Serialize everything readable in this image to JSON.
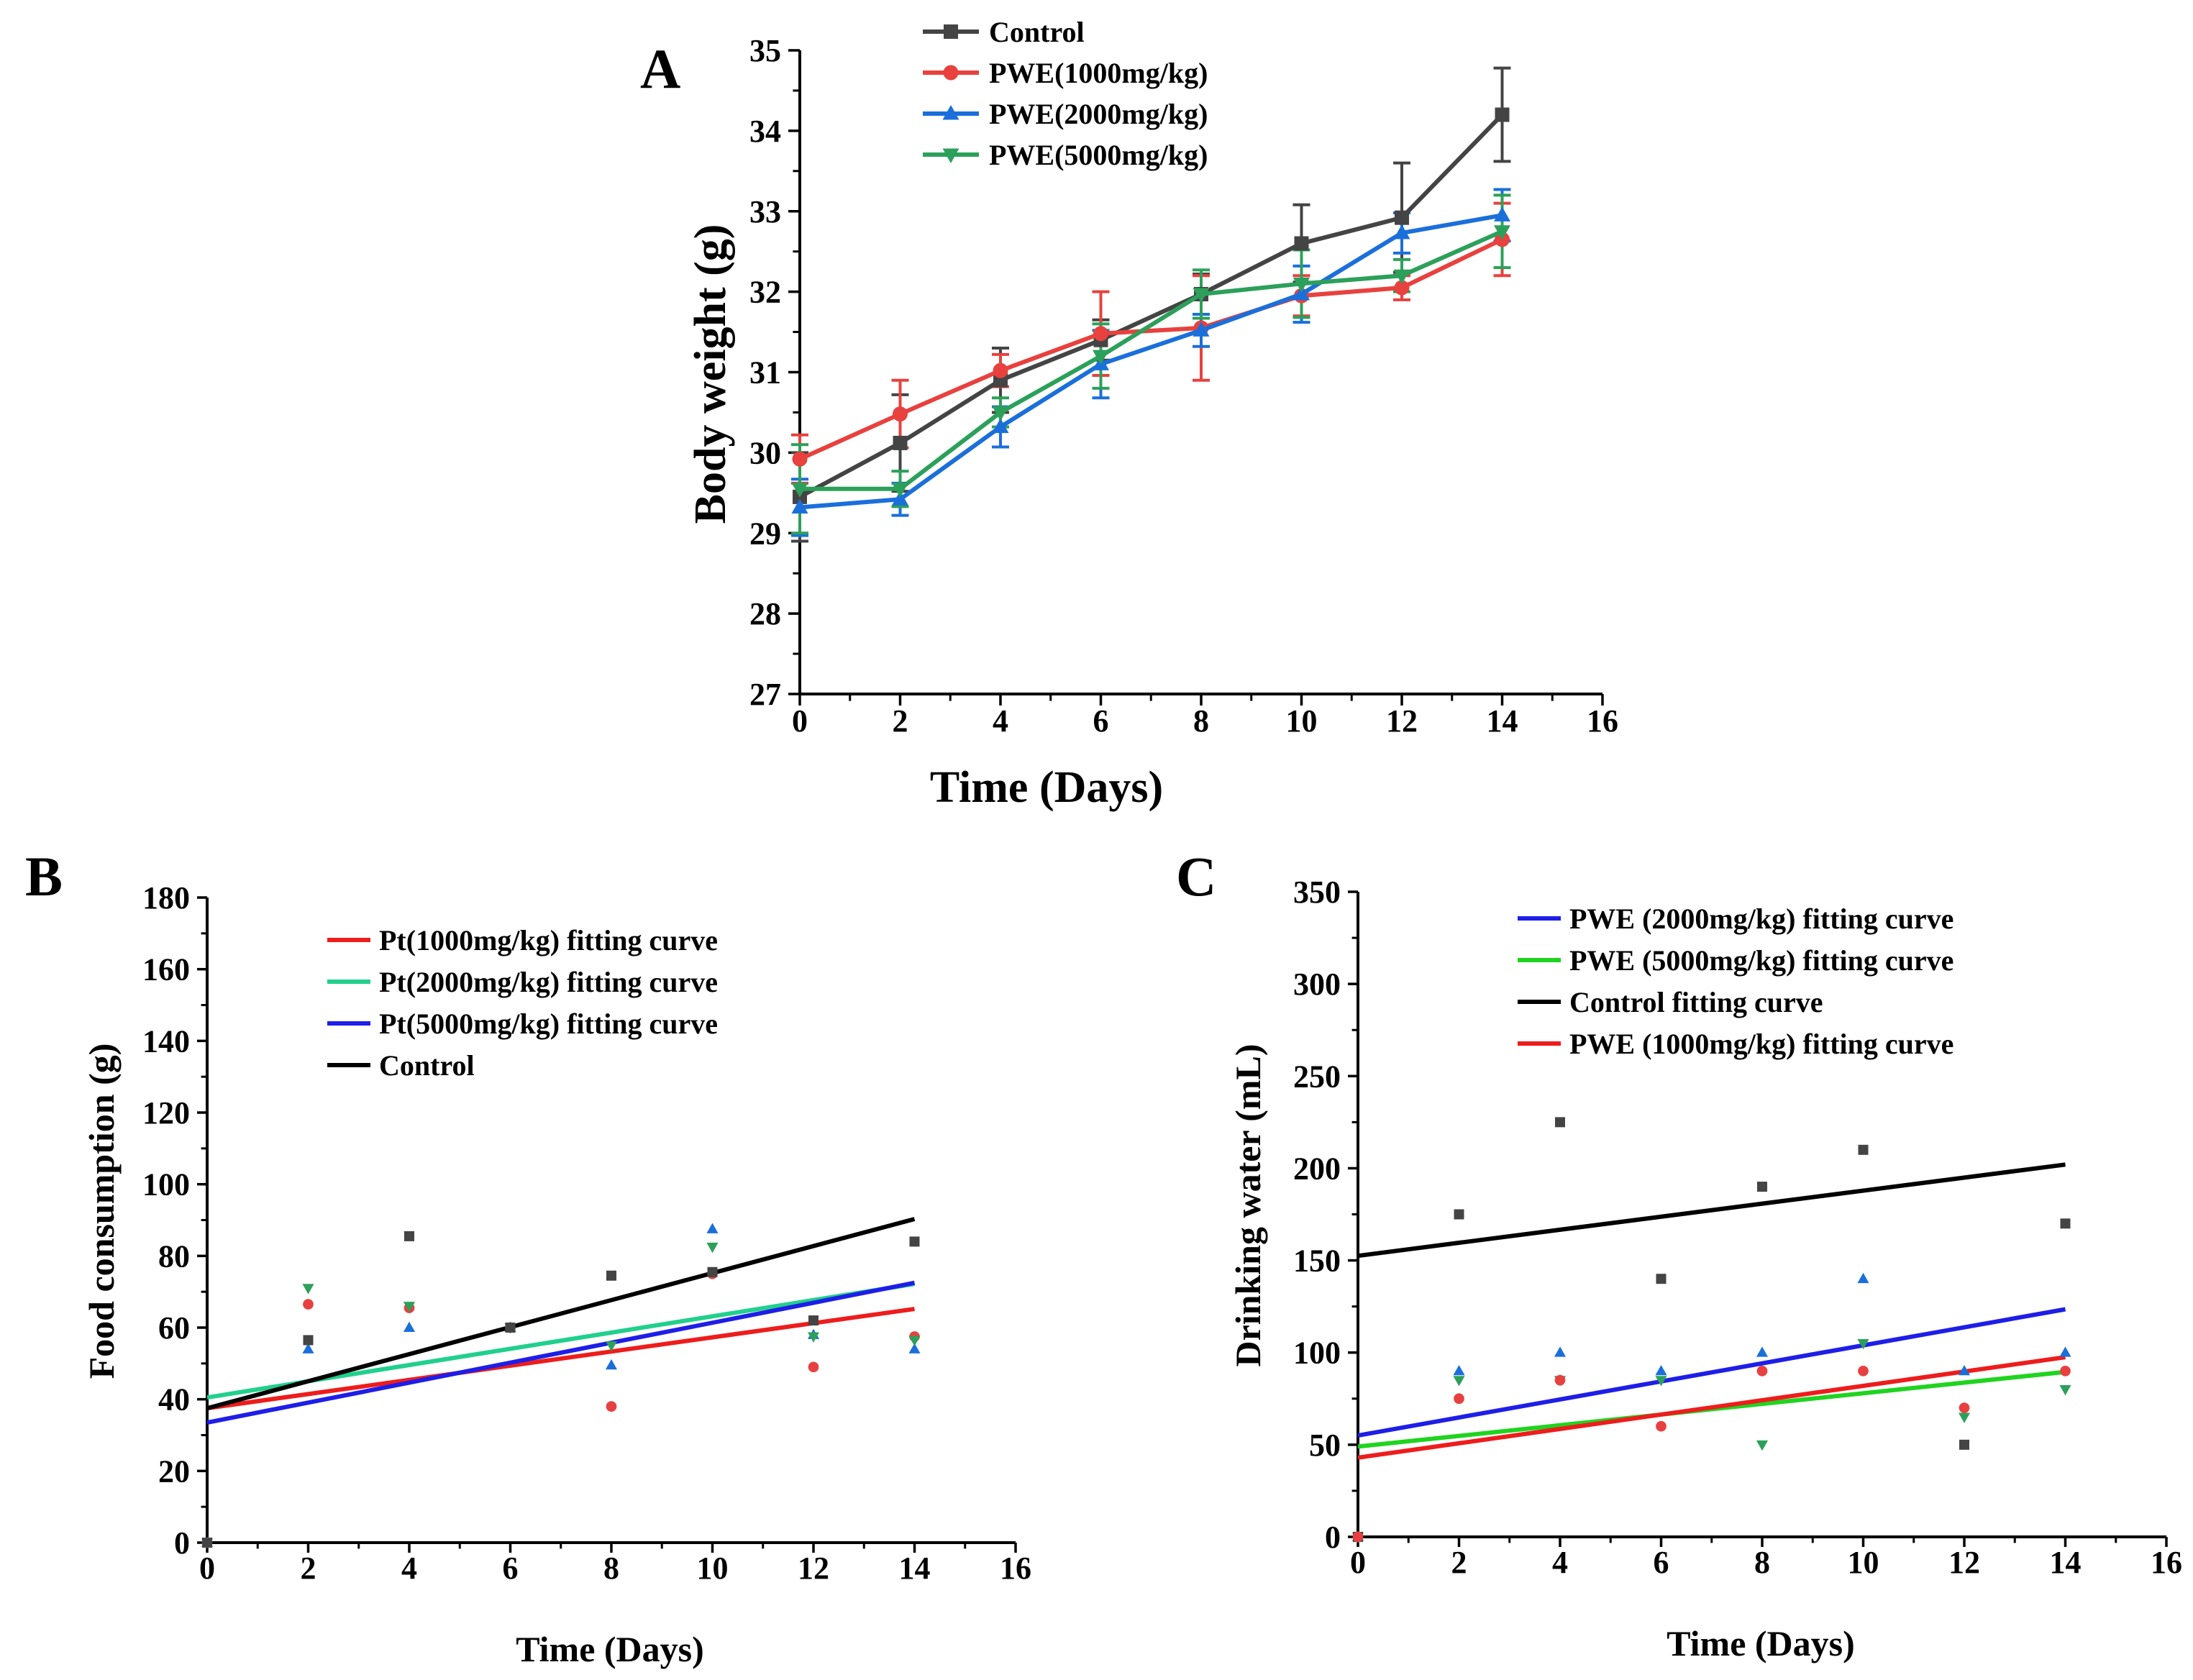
{
  "colors": {
    "control": "#444444",
    "pwe1000": "#e8413e",
    "pwe2000": "#1a6fdb",
    "pwe5000": "#2ca05a",
    "fit_red": "#ee1c1c",
    "fit_teal": "#20d08c",
    "fit_blue": "#1e1ee8",
    "fit_green": "#1fd41f",
    "fit_black": "#000000",
    "pt_red_pts": "#e84040",
    "pt_blue_pts": "#1a6fdb",
    "pt_green_pts": "#2ca05a",
    "pt_black_pts": "#444444"
  },
  "chart_data": [
    {
      "panel": "A",
      "type": "line",
      "title": "",
      "xlabel": "Time (Days)",
      "ylabel": "Body weight (g)",
      "xlim": [
        0,
        16
      ],
      "ylim": [
        27,
        35
      ],
      "xticks": [
        "0",
        "2",
        "4",
        "6",
        "8",
        "10",
        "12",
        "14",
        "16"
      ],
      "yticks": [
        "27",
        "28",
        "29",
        "30",
        "31",
        "32",
        "33",
        "34",
        "35"
      ],
      "legend_position": "top",
      "x": [
        0,
        2,
        4,
        6,
        8,
        10,
        12,
        14
      ],
      "series": [
        {
          "name": "Control",
          "marker": "square",
          "color_key": "control",
          "values": [
            29.45,
            30.12,
            30.9,
            31.4,
            31.97,
            32.6,
            32.92,
            34.2
          ],
          "errors": [
            0.55,
            0.6,
            0.4,
            0.25,
            0.25,
            0.48,
            0.68,
            0.58
          ]
        },
        {
          "name": "PWE(1000mg/kg)",
          "marker": "circle",
          "color_key": "pwe1000",
          "values": [
            29.92,
            30.48,
            31.02,
            31.48,
            31.55,
            31.95,
            32.05,
            32.65
          ],
          "errors": [
            0.3,
            0.42,
            0.2,
            0.52,
            0.65,
            0.25,
            0.15,
            0.45
          ]
        },
        {
          "name": "PWE(2000mg/kg)",
          "marker": "triangle-up",
          "color_key": "pwe2000",
          "values": [
            29.32,
            29.42,
            30.32,
            31.1,
            31.52,
            31.97,
            32.73,
            32.95
          ],
          "errors": [
            0.35,
            0.2,
            0.25,
            0.42,
            0.2,
            0.35,
            0.25,
            0.32
          ]
        },
        {
          "name": "PWE(5000mg/kg)",
          "marker": "triangle-down",
          "color_key": "pwe5000",
          "values": [
            29.55,
            29.55,
            30.5,
            31.2,
            31.97,
            32.1,
            32.2,
            32.75
          ],
          "errors": [
            0.55,
            0.22,
            0.18,
            0.4,
            0.3,
            0.42,
            0.2,
            0.45
          ]
        }
      ]
    },
    {
      "panel": "B",
      "type": "scatter",
      "title": "",
      "xlabel": "Time (Days)",
      "ylabel": "Food consumption (g)",
      "xlim": [
        0,
        16
      ],
      "ylim": [
        0,
        180
      ],
      "xticks": [
        "0",
        "2",
        "4",
        "6",
        "8",
        "10",
        "12",
        "14",
        "16"
      ],
      "yticks": [
        "0",
        "20",
        "40",
        "60",
        "80",
        "100",
        "120",
        "140",
        "160",
        "180"
      ],
      "legend_position": "top-center",
      "fits": [
        {
          "name": "Pt(1000mg/kg) fitting curve",
          "color_key": "fit_red",
          "x": [
            0,
            14
          ],
          "y": [
            37.5,
            65.2
          ]
        },
        {
          "name": "Pt(2000mg/kg) fitting curve",
          "color_key": "fit_teal",
          "x": [
            0,
            14
          ],
          "y": [
            40.5,
            72.2
          ]
        },
        {
          "name": "Pt(5000mg/kg) fitting curve",
          "color_key": "fit_blue",
          "x": [
            0,
            14
          ],
          "y": [
            33.5,
            72.5
          ]
        },
        {
          "name": "Control",
          "color_key": "fit_black",
          "x": [
            0,
            14
          ],
          "y": [
            37.5,
            90.3
          ]
        }
      ],
      "points": [
        {
          "group": "1000mg/kg",
          "marker": "circle",
          "color_key": "pt_red_pts",
          "x": [
            0,
            2,
            4,
            6,
            8,
            10,
            12,
            14
          ],
          "y": [
            0,
            66.5,
            65.5,
            60,
            38,
            75,
            49,
            57.5
          ]
        },
        {
          "group": "2000mg/kg",
          "marker": "triangle-up",
          "color_key": "pt_blue_pts",
          "x": [
            0,
            2,
            4,
            6,
            8,
            10,
            12,
            14
          ],
          "y": [
            0,
            54,
            60,
            60,
            49.5,
            87.5,
            58,
            54
          ]
        },
        {
          "group": "5000mg/kg",
          "marker": "triangle-down",
          "color_key": "pt_green_pts",
          "x": [
            0,
            2,
            4,
            6,
            8,
            10,
            12,
            14
          ],
          "y": [
            0,
            71,
            66,
            60,
            55,
            82.5,
            57.5,
            56.5
          ]
        },
        {
          "group": "Control",
          "marker": "square",
          "color_key": "pt_black_pts",
          "x": [
            0,
            2,
            4,
            6,
            8,
            10,
            12,
            14
          ],
          "y": [
            0,
            56.5,
            85.5,
            60,
            74.5,
            75.5,
            62,
            84
          ]
        }
      ]
    },
    {
      "panel": "C",
      "type": "scatter",
      "title": "",
      "xlabel": "Time (Days)",
      "ylabel": "Drinking water (mL)",
      "xlim": [
        0,
        16
      ],
      "ylim": [
        0,
        350
      ],
      "xticks": [
        "0",
        "2",
        "4",
        "6",
        "8",
        "10",
        "12",
        "14",
        "16"
      ],
      "yticks": [
        "0",
        "50",
        "100",
        "150",
        "200",
        "250",
        "300",
        "350"
      ],
      "legend_position": "top-center",
      "fits": [
        {
          "name": "PWE (2000mg/kg) fitting curve",
          "color_key": "fit_blue",
          "x": [
            0,
            14
          ],
          "y": [
            55,
            123.5
          ]
        },
        {
          "name": "PWE (5000mg/kg) fitting curve",
          "color_key": "fit_green",
          "x": [
            0,
            14
          ],
          "y": [
            49,
            89.5
          ]
        },
        {
          "name": "Control fitting curve",
          "color_key": "fit_black",
          "x": [
            0,
            14
          ],
          "y": [
            152.5,
            202
          ]
        },
        {
          "name": "PWE (1000mg/kg) fitting curve",
          "color_key": "fit_red",
          "x": [
            0,
            14
          ],
          "y": [
            43,
            97.5
          ]
        }
      ],
      "points": [
        {
          "group": "2000mg/kg",
          "marker": "triangle-up",
          "color_key": "pt_blue_pts",
          "x": [
            0,
            2,
            4,
            6,
            8,
            10,
            12,
            14
          ],
          "y": [
            0,
            90,
            100,
            90,
            100,
            140,
            90,
            100
          ]
        },
        {
          "group": "5000mg/kg",
          "marker": "triangle-down",
          "color_key": "pt_green_pts",
          "x": [
            0,
            2,
            4,
            6,
            8,
            10,
            12,
            14
          ],
          "y": [
            0,
            85,
            85,
            85,
            50,
            105,
            65,
            80
          ]
        },
        {
          "group": "Control",
          "marker": "square",
          "color_key": "pt_black_pts",
          "x": [
            0,
            2,
            4,
            6,
            8,
            10,
            12,
            14
          ],
          "y": [
            0,
            175,
            225,
            140,
            190,
            210,
            50,
            170
          ]
        },
        {
          "group": "1000mg/kg",
          "marker": "circle",
          "color_key": "pt_red_pts",
          "x": [
            0,
            2,
            4,
            6,
            8,
            10,
            12,
            14
          ],
          "y": [
            0,
            75,
            85,
            60,
            90,
            90,
            70,
            90
          ]
        }
      ]
    }
  ],
  "panels": {
    "a_letter": "A",
    "b_letter": "B",
    "c_letter": "C"
  }
}
